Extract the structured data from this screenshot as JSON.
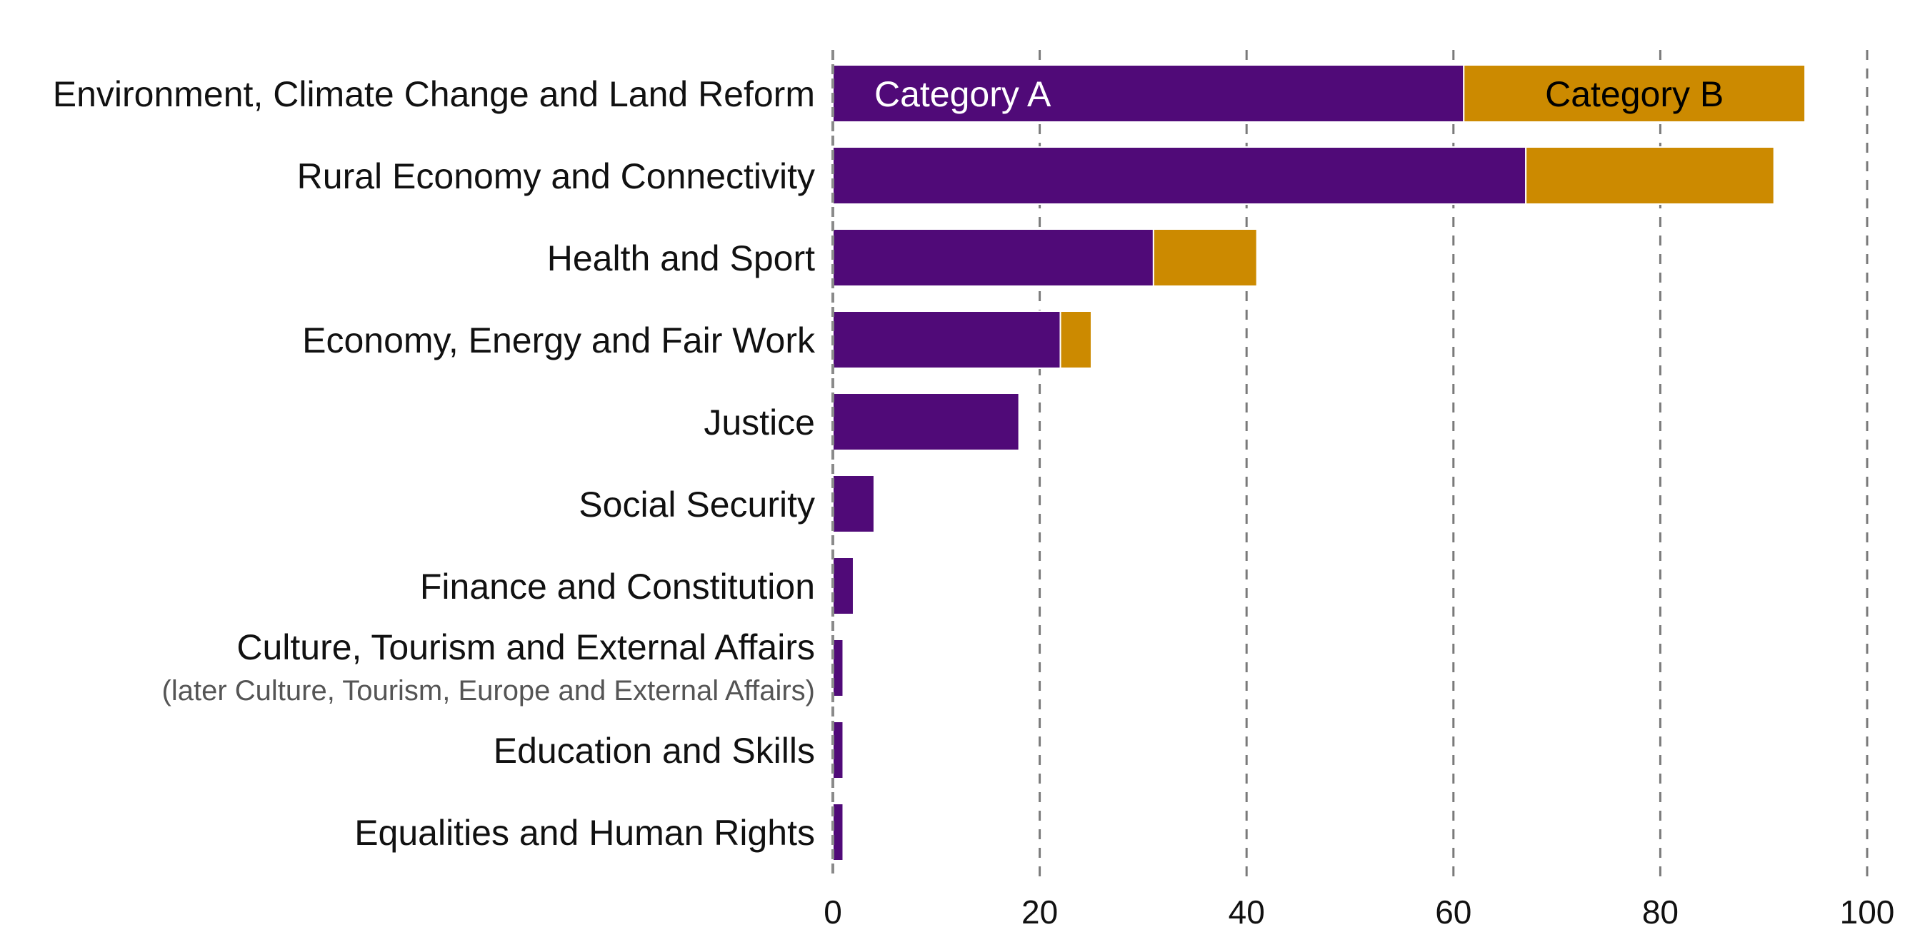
{
  "chart_data": {
    "type": "bar",
    "orientation": "horizontal",
    "stacked": true,
    "categories": [
      "Environment, Climate Change and Land Reform",
      "Rural Economy and Connectivity",
      "Health and Sport",
      "Economy, Energy and Fair Work",
      "Justice",
      "Social Security",
      "Finance and Constitution",
      "Culture, Tourism and External Affairs",
      "Education and Skills",
      "Equalities and Human Rights"
    ],
    "category_sublabels": [
      "",
      "",
      "",
      "",
      "",
      "",
      "",
      "(later Culture, Tourism, Europe and External Affairs)",
      "",
      ""
    ],
    "series": [
      {
        "name": "Category A",
        "color": "#500a78",
        "label_color": "#ffffff",
        "values": [
          61,
          67,
          31,
          22,
          18,
          4,
          2,
          1,
          1,
          1
        ]
      },
      {
        "name": "Category B",
        "color": "#cc8a00",
        "label_color": "#000000",
        "values": [
          33,
          24,
          10,
          3,
          0,
          0,
          0,
          0,
          0,
          0
        ]
      }
    ],
    "xlim": [
      0,
      100
    ],
    "xticks": [
      0,
      20,
      40,
      60,
      80,
      100
    ],
    "grid": "vertical dashed",
    "legend": "inline labels inside first bar",
    "title": "",
    "xlabel": "",
    "ylabel": ""
  }
}
